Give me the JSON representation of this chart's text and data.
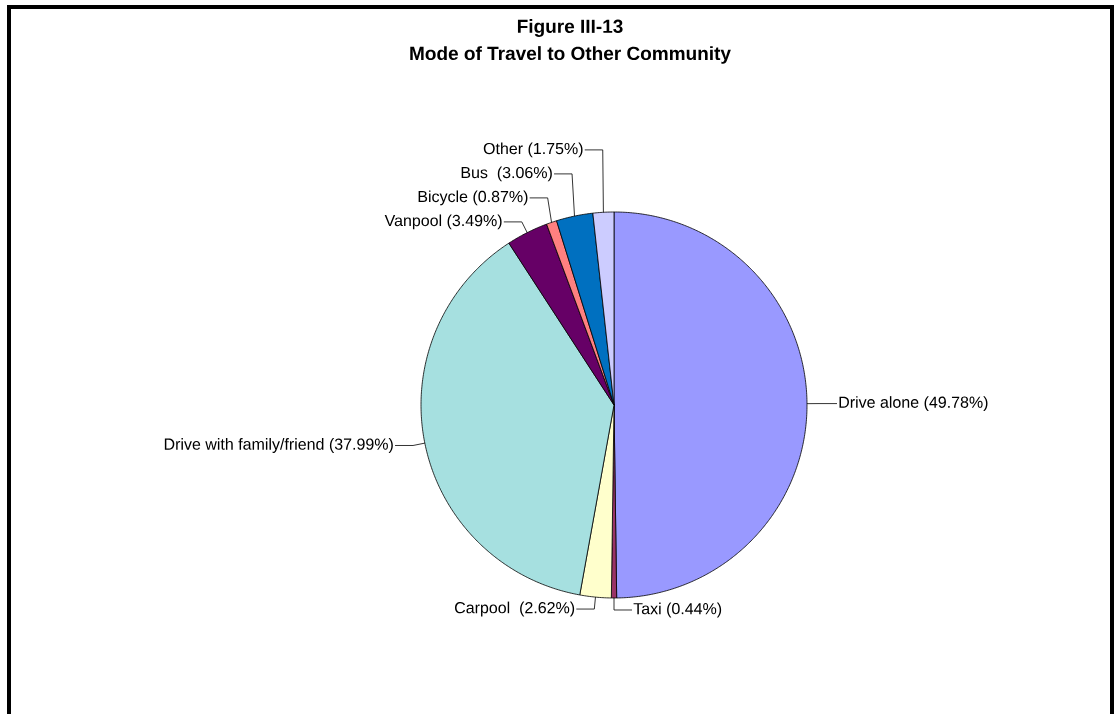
{
  "chart_data": {
    "type": "pie",
    "title": "Figure III-13",
    "subtitle": "Mode of Travel to Other Community",
    "categories": [
      "Drive alone",
      "Taxi",
      "Carpool  ",
      "Drive with family/friend",
      "Vanpool",
      "Bicycle",
      "Bus  ",
      "Other"
    ],
    "values": [
      49.78,
      0.44,
      2.62,
      37.99,
      3.49,
      0.87,
      3.06,
      1.75
    ],
    "value_labels": [
      "(49.78%)",
      "(0.44%)",
      "(2.62%)",
      "(37.99%)",
      "(3.49%)",
      "(0.87%)",
      "(3.06%)",
      "(1.75%)"
    ],
    "colors": [
      "#9999ff",
      "#993366",
      "#ffffcc",
      "#a6e0e0",
      "#660066",
      "#ff8080",
      "#0070c0",
      "#ccccff"
    ]
  }
}
